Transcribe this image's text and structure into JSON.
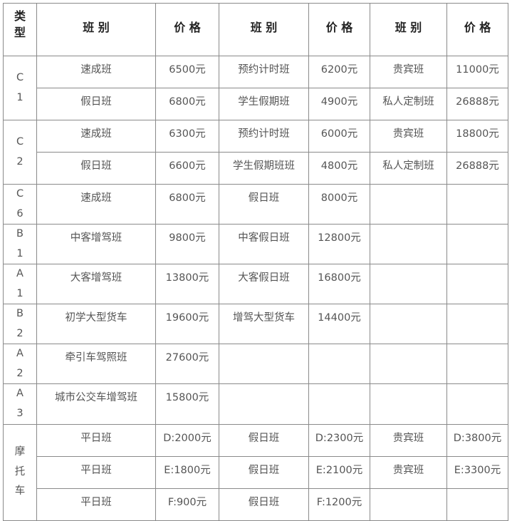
{
  "header": [
    "类型",
    "班 别",
    "价 格",
    "班 别",
    "价 格",
    "班 别",
    "价 格"
  ],
  "groups": [
    {
      "type": "C1",
      "rows": [
        [
          "速成班",
          "6500元",
          "预约计时班",
          "6200元",
          "贵宾班",
          "11000元"
        ],
        [
          "假日班",
          "6800元",
          "学生假期班",
          "4900元",
          "私人定制班",
          "26888元"
        ]
      ]
    },
    {
      "type": "C2",
      "rows": [
        [
          "速成班",
          "6300元",
          "预约计时班",
          "6000元",
          "贵宾班",
          "18800元"
        ],
        [
          "假日班",
          "6600元",
          "学生假期班班",
          "4800元",
          "私人定制班",
          "26888元"
        ]
      ]
    },
    {
      "type": "C6",
      "rows": [
        [
          "速成班",
          "6800元",
          "假日班",
          "8000元",
          "",
          ""
        ]
      ]
    },
    {
      "type": "B1",
      "rows": [
        [
          "中客增驾班",
          "9800元",
          "中客假日班",
          "12800元",
          "",
          ""
        ]
      ]
    },
    {
      "type": "A1",
      "rows": [
        [
          "大客增驾班",
          "13800元",
          "大客假日班",
          "16800元",
          "",
          ""
        ]
      ]
    },
    {
      "type": "B2",
      "rows": [
        [
          "初学大型货车",
          "19600元",
          "增驾大型货车",
          "14400元",
          "",
          ""
        ]
      ]
    },
    {
      "type": "A2",
      "rows": [
        [
          "牵引车驾照班",
          "27600元",
          "",
          "",
          "",
          ""
        ]
      ]
    },
    {
      "type": "A3",
      "rows": [
        [
          "城市公交车增驾班",
          "15800元",
          "",
          "",
          "",
          ""
        ]
      ]
    },
    {
      "type": "摩托车",
      "rows": [
        [
          "平日班",
          "D:2000元",
          "假日班",
          "D:2300元",
          "贵宾班",
          "D:3800元"
        ],
        [
          "平日班",
          "E:1800元",
          "假日班",
          "E:2100元",
          "贵宾班",
          "E:3300元"
        ],
        [
          "平日班",
          "F:900元",
          "假日班",
          "F:1200元",
          "",
          ""
        ]
      ]
    }
  ]
}
